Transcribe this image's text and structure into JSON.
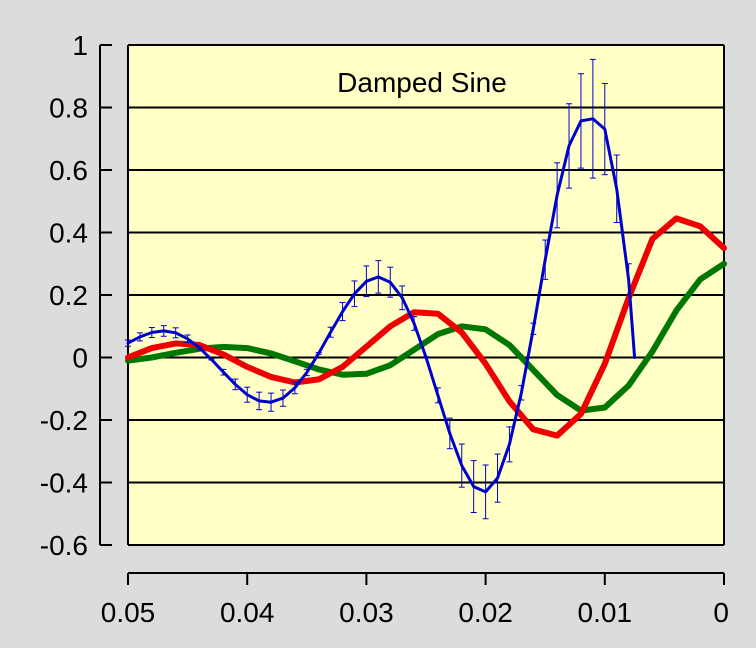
{
  "chart_data": {
    "type": "line",
    "title": "Damped Sine",
    "xlabel": "",
    "ylabel": "",
    "xlim": [
      0.05,
      0
    ],
    "ylim": [
      -0.6,
      1
    ],
    "x_ticks": [
      "0.05",
      "0.04",
      "0.03",
      "0.02",
      "0.01",
      "0"
    ],
    "y_ticks": [
      "1",
      "0.8",
      "0.6",
      "0.4",
      "0.2",
      "0",
      "-0.2",
      "-0.4",
      "-0.6"
    ],
    "grid": true,
    "legend": "none",
    "colors": {
      "background": "#dcdcdc",
      "plot_area": "#ffffc6",
      "grid": "#000000"
    },
    "series": [
      {
        "color": "#0000cc",
        "error_bars": true,
        "points": [
          {
            "x": 0.05,
            "y": 0.046,
            "err": 0.01
          },
          {
            "x": 0.049,
            "y": 0.066,
            "err": 0.013
          },
          {
            "x": 0.048,
            "y": 0.08,
            "err": 0.016
          },
          {
            "x": 0.047,
            "y": 0.085,
            "err": 0.017
          },
          {
            "x": 0.046,
            "y": 0.079,
            "err": 0.016
          },
          {
            "x": 0.045,
            "y": 0.06,
            "err": 0.012
          },
          {
            "x": 0.044,
            "y": 0.031,
            "err": 0.006
          },
          {
            "x": 0.043,
            "y": -0.006,
            "err": 0.002
          },
          {
            "x": 0.042,
            "y": -0.047,
            "err": 0.009
          },
          {
            "x": 0.041,
            "y": -0.086,
            "err": 0.017
          },
          {
            "x": 0.04,
            "y": -0.119,
            "err": 0.024
          },
          {
            "x": 0.039,
            "y": -0.139,
            "err": 0.028
          },
          {
            "x": 0.038,
            "y": -0.143,
            "err": 0.029
          },
          {
            "x": 0.037,
            "y": -0.13,
            "err": 0.026
          },
          {
            "x": 0.036,
            "y": -0.097,
            "err": 0.019
          },
          {
            "x": 0.035,
            "y": -0.048,
            "err": 0.01
          },
          {
            "x": 0.034,
            "y": 0.013,
            "err": 0.003
          },
          {
            "x": 0.033,
            "y": 0.081,
            "err": 0.016
          },
          {
            "x": 0.032,
            "y": 0.147,
            "err": 0.029
          },
          {
            "x": 0.031,
            "y": 0.204,
            "err": 0.041
          },
          {
            "x": 0.03,
            "y": 0.244,
            "err": 0.049
          },
          {
            "x": 0.029,
            "y": 0.258,
            "err": 0.052
          },
          {
            "x": 0.028,
            "y": 0.241,
            "err": 0.048
          },
          {
            "x": 0.027,
            "y": 0.191,
            "err": 0.038
          },
          {
            "x": 0.026,
            "y": 0.109,
            "err": 0.022
          },
          {
            "x": 0.025,
            "y": 0.001,
            "err": 0.002
          },
          {
            "x": 0.024,
            "y": -0.121,
            "err": 0.024
          },
          {
            "x": 0.023,
            "y": -0.243,
            "err": 0.049
          },
          {
            "x": 0.022,
            "y": -0.346,
            "err": 0.069
          },
          {
            "x": 0.021,
            "y": -0.413,
            "err": 0.083
          },
          {
            "x": 0.02,
            "y": -0.43,
            "err": 0.086
          },
          {
            "x": 0.019,
            "y": -0.386,
            "err": 0.077
          },
          {
            "x": 0.018,
            "y": -0.278,
            "err": 0.056
          },
          {
            "x": 0.017,
            "y": -0.113,
            "err": 0.023
          },
          {
            "x": 0.016,
            "y": 0.092,
            "err": 0.018
          },
          {
            "x": 0.015,
            "y": 0.313,
            "err": 0.063
          },
          {
            "x": 0.014,
            "y": 0.519,
            "err": 0.104
          },
          {
            "x": 0.013,
            "y": 0.677,
            "err": 0.135
          },
          {
            "x": 0.012,
            "y": 0.757,
            "err": 0.151
          },
          {
            "x": 0.011,
            "y": 0.764,
            "err": 0.19
          },
          {
            "x": 0.01,
            "y": 0.731,
            "err": 0.146
          },
          {
            "x": 0.009,
            "y": 0.54,
            "err": 0.108
          },
          {
            "x": 0.008,
            "y": 0.25,
            "err": 0.05
          },
          {
            "x": 0.0075,
            "y": 0.0,
            "err": 0.0
          }
        ]
      },
      {
        "color": "#ee0000",
        "error_bars": false,
        "points": [
          {
            "x": 0.05,
            "y": 0.0
          },
          {
            "x": 0.048,
            "y": 0.03
          },
          {
            "x": 0.046,
            "y": 0.045
          },
          {
            "x": 0.044,
            "y": 0.04
          },
          {
            "x": 0.042,
            "y": 0.01
          },
          {
            "x": 0.04,
            "y": -0.03
          },
          {
            "x": 0.038,
            "y": -0.062
          },
          {
            "x": 0.036,
            "y": -0.08
          },
          {
            "x": 0.034,
            "y": -0.07
          },
          {
            "x": 0.032,
            "y": -0.03
          },
          {
            "x": 0.03,
            "y": 0.035
          },
          {
            "x": 0.028,
            "y": 0.1
          },
          {
            "x": 0.026,
            "y": 0.145
          },
          {
            "x": 0.024,
            "y": 0.14
          },
          {
            "x": 0.022,
            "y": 0.08
          },
          {
            "x": 0.02,
            "y": -0.02
          },
          {
            "x": 0.018,
            "y": -0.14
          },
          {
            "x": 0.016,
            "y": -0.23
          },
          {
            "x": 0.014,
            "y": -0.25
          },
          {
            "x": 0.012,
            "y": -0.18
          },
          {
            "x": 0.01,
            "y": -0.02
          },
          {
            "x": 0.008,
            "y": 0.19
          },
          {
            "x": 0.006,
            "y": 0.38
          },
          {
            "x": 0.004,
            "y": 0.445
          },
          {
            "x": 0.002,
            "y": 0.42
          },
          {
            "x": 0.0,
            "y": 0.35
          }
        ]
      },
      {
        "color": "#007700",
        "error_bars": false,
        "points": [
          {
            "x": 0.05,
            "y": -0.01
          },
          {
            "x": 0.048,
            "y": 0.0
          },
          {
            "x": 0.046,
            "y": 0.015
          },
          {
            "x": 0.044,
            "y": 0.028
          },
          {
            "x": 0.042,
            "y": 0.034
          },
          {
            "x": 0.04,
            "y": 0.03
          },
          {
            "x": 0.038,
            "y": 0.013
          },
          {
            "x": 0.036,
            "y": -0.012
          },
          {
            "x": 0.034,
            "y": -0.038
          },
          {
            "x": 0.032,
            "y": -0.055
          },
          {
            "x": 0.03,
            "y": -0.052
          },
          {
            "x": 0.028,
            "y": -0.025
          },
          {
            "x": 0.026,
            "y": 0.025
          },
          {
            "x": 0.024,
            "y": 0.075
          },
          {
            "x": 0.022,
            "y": 0.1
          },
          {
            "x": 0.02,
            "y": 0.09
          },
          {
            "x": 0.018,
            "y": 0.04
          },
          {
            "x": 0.016,
            "y": -0.04
          },
          {
            "x": 0.014,
            "y": -0.12
          },
          {
            "x": 0.012,
            "y": -0.17
          },
          {
            "x": 0.01,
            "y": -0.16
          },
          {
            "x": 0.008,
            "y": -0.09
          },
          {
            "x": 0.006,
            "y": 0.02
          },
          {
            "x": 0.004,
            "y": 0.15
          },
          {
            "x": 0.002,
            "y": 0.25
          },
          {
            "x": 0.0,
            "y": 0.3
          }
        ]
      }
    ]
  }
}
